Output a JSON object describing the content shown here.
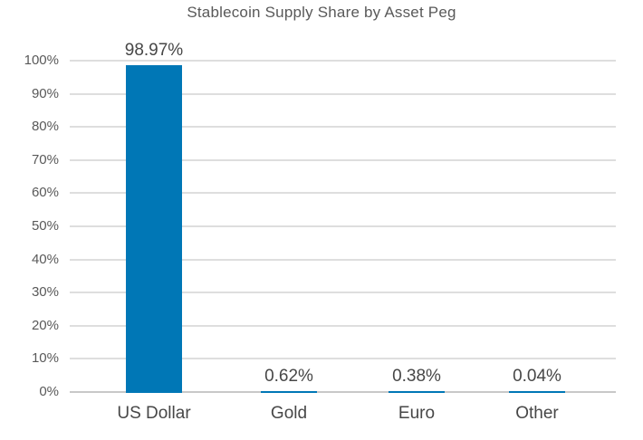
{
  "chart_data": {
    "type": "bar",
    "title": "Stablecoin Supply Share by Asset Peg",
    "categories": [
      "US Dollar",
      "Gold",
      "Euro",
      "Other"
    ],
    "values": [
      98.97,
      0.62,
      0.38,
      0.04
    ],
    "value_labels": [
      "98.97%",
      "0.62%",
      "0.38%",
      "0.04%"
    ],
    "xlabel": "",
    "ylabel": "",
    "ylim": [
      0,
      100
    ],
    "ytick_step": 10,
    "ytick_labels": [
      "0%",
      "10%",
      "20%",
      "30%",
      "40%",
      "50%",
      "60%",
      "70%",
      "80%",
      "90%",
      "100%"
    ],
    "grid": "horizontal",
    "legend": "none",
    "colors": {
      "bar": "#0077B6",
      "title_text": "#595959",
      "axis_text": "#595959",
      "label_text": "#474747",
      "gridline": "#DEDEDE",
      "axis_line": "#C8C8C8"
    }
  }
}
